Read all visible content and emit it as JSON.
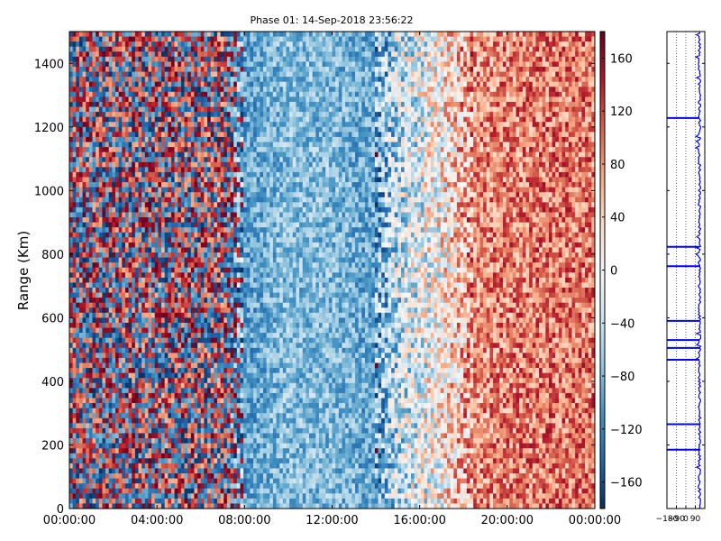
{
  "chart_data": [
    {
      "type": "heatmap",
      "title": "Phase 01: 14-Sep-2018 23:56:22",
      "ylabel": "Range (Km)",
      "xlabel": "",
      "xlim": [
        "00:00:00",
        "24:00:00"
      ],
      "ylim": [
        0,
        1500
      ],
      "x_tick_labels": [
        "00:00:00",
        "04:00:00",
        "08:00:00",
        "12:00:00",
        "16:00:00",
        "20:00:00",
        "00:00:00"
      ],
      "y_tick_labels": [
        "0",
        "200",
        "400",
        "600",
        "800",
        "1000",
        "1200",
        "1400"
      ],
      "y_ticks": [
        0,
        200,
        400,
        600,
        800,
        1000,
        1200,
        1400
      ],
      "colorbar": {
        "range": [
          -180,
          180
        ],
        "ticks": [
          -160,
          -120,
          -80,
          -40,
          0,
          40,
          80,
          120,
          160
        ],
        "tick_labels": [
          "−160",
          "−120",
          "−80",
          "−40",
          "0",
          "40",
          "80",
          "120",
          "160"
        ],
        "colormap": "RdBu_r",
        "colors": {
          "low": "#053061",
          "mid": "#f7f7f7",
          "high": "#67001f"
        }
      },
      "phase_trend_by_hour": [
        {
          "hour": 0,
          "phase": 170
        },
        {
          "hour": 2,
          "phase": 175
        },
        {
          "hour": 4,
          "phase": 165
        },
        {
          "hour": 6,
          "phase": 170
        },
        {
          "hour": 7,
          "phase": 160
        },
        {
          "hour": 8,
          "phase": -100
        },
        {
          "hour": 10,
          "phase": -75
        },
        {
          "hour": 12,
          "phase": -80
        },
        {
          "hour": 14,
          "phase": -95
        },
        {
          "hour": 15,
          "phase": -40
        },
        {
          "hour": 17,
          "phase": 10
        },
        {
          "hour": 18.5,
          "phase": 80
        },
        {
          "hour": 20,
          "phase": 90
        },
        {
          "hour": 22,
          "phase": 95
        },
        {
          "hour": 24,
          "phase": 95
        }
      ]
    },
    {
      "type": "line",
      "title": "",
      "xlabel": "",
      "ylabel": "",
      "xlim": [
        -180,
        180
      ],
      "ylim": [
        0,
        1500
      ],
      "x_tick_labels": [
        "−180",
        "−90",
        "0",
        "90"
      ],
      "x_ticks": [
        -180,
        -90,
        0,
        90
      ],
      "grid": true,
      "series": [
        {
          "color": "#0000ff",
          "baseline": 130,
          "spikes": [
            {
              "range": 1228,
              "phase": -180
            },
            {
              "range": 823,
              "phase": -180
            },
            {
              "range": 762,
              "phase": -180
            },
            {
              "range": 590,
              "phase": -180
            },
            {
              "range": 530,
              "phase": -180
            },
            {
              "range": 505,
              "phase": -180
            },
            {
              "range": 468,
              "phase": -180
            },
            {
              "range": 265,
              "phase": -180
            },
            {
              "range": 185,
              "phase": -180
            }
          ]
        }
      ]
    }
  ]
}
